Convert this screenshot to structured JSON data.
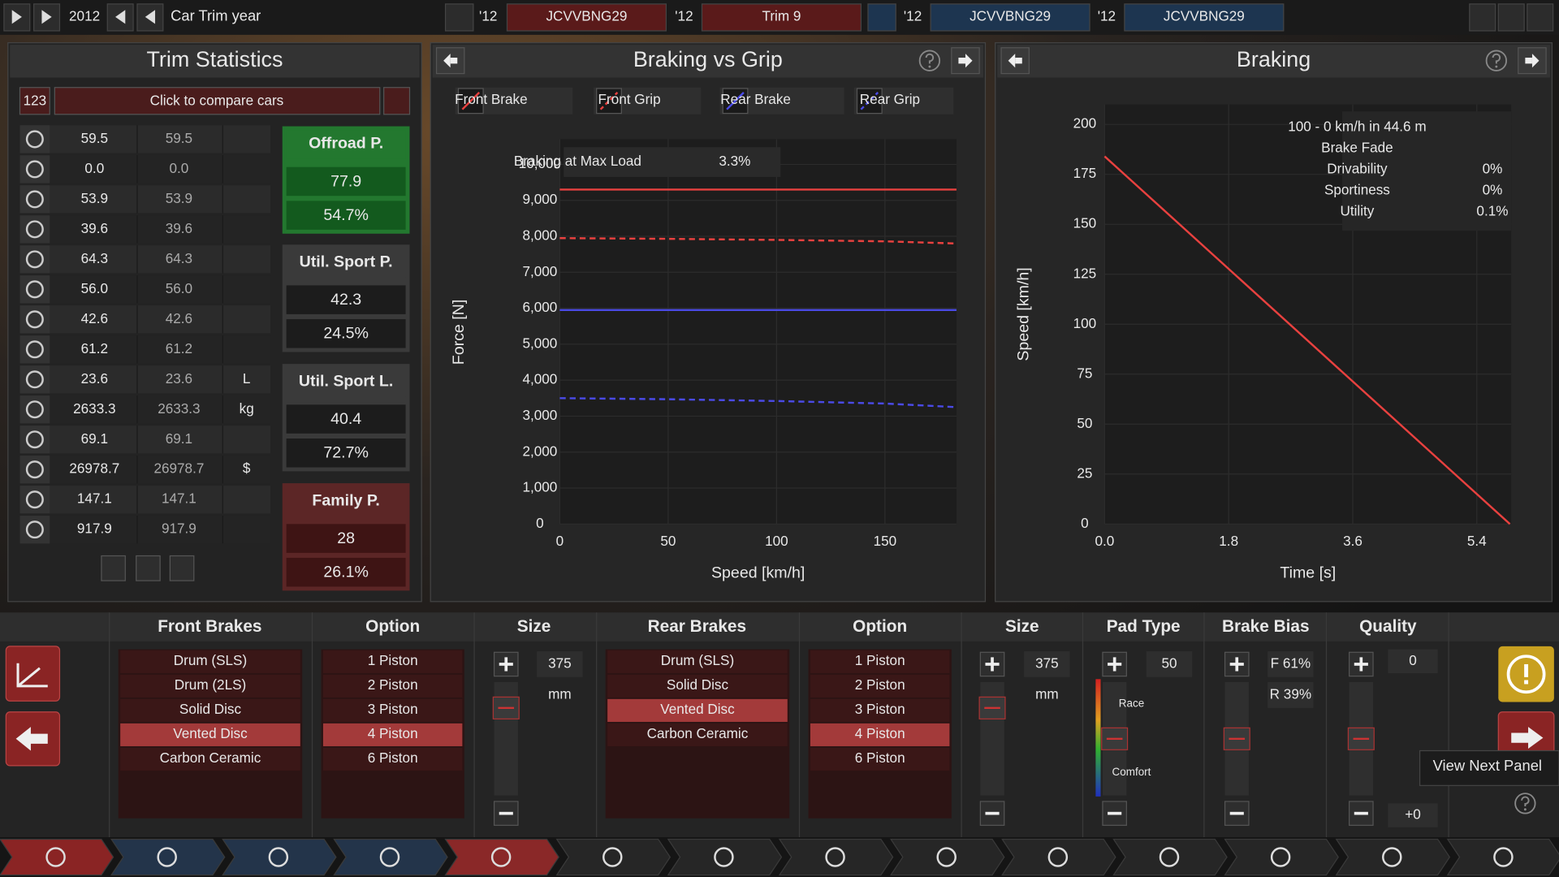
{
  "top_bar": {
    "year": "2012",
    "label": "Car Trim year",
    "slots": [
      {
        "year": "'12",
        "name": "JCVVBNG29",
        "color": "#5a1a1a"
      },
      {
        "year": "'12",
        "name": "Trim 9",
        "color": "#5a1a1a"
      },
      {
        "year": "'12",
        "name": "JCVVBNG29",
        "color": "#1d3550"
      },
      {
        "year": "'12",
        "name": "JCVVBNG29",
        "color": "#1d3550"
      }
    ]
  },
  "trim_statistics": {
    "title": "Trim Statistics",
    "count": "123",
    "compare_button": "Click to compare cars",
    "rows": [
      {
        "current": "59.5",
        "compare": "59.5"
      },
      {
        "current": "0.0",
        "compare": "0.0"
      },
      {
        "current": "53.9",
        "compare": "53.9"
      },
      {
        "current": "39.6",
        "compare": "39.6"
      },
      {
        "current": "64.3",
        "compare": "64.3"
      },
      {
        "current": "56.0",
        "compare": "56.0"
      },
      {
        "current": "42.6",
        "compare": "42.6"
      },
      {
        "current": "61.2",
        "compare": "61.2"
      },
      {
        "current": "23.6",
        "compare": "23.6",
        "unit": "L"
      },
      {
        "current": "2633.3",
        "compare": "2633.3",
        "unit": "kg"
      },
      {
        "current": "69.1",
        "compare": "69.1"
      },
      {
        "current": "26978.7",
        "compare": "26978.7",
        "unit": "$"
      },
      {
        "current": "147.1",
        "compare": "147.1"
      },
      {
        "current": "917.9",
        "compare": "917.9"
      }
    ],
    "scores": [
      {
        "name": "Offroad P.",
        "value": "77.9",
        "percent": "54.7%",
        "color": "#23782f",
        "inner": "#135a1e"
      },
      {
        "name": "Util. Sport P.",
        "value": "42.3",
        "percent": "24.5%",
        "color": "#3a3a3a",
        "inner": "#1c1c1c"
      },
      {
        "name": "Util. Sport L.",
        "value": "40.4",
        "percent": "72.7%",
        "color": "#3a3a3a",
        "inner": "#1c1c1c"
      },
      {
        "name": "Family P.",
        "value": "28",
        "percent": "26.1%",
        "color": "#5c2626",
        "inner": "#3e1414"
      }
    ]
  },
  "chart_data": [
    {
      "type": "line",
      "title": "Braking vs Grip",
      "x_label": "Speed [km/h]",
      "y_label": "Force [N]",
      "annotation": {
        "text": "Braking at Max Load",
        "value": "3.3%"
      },
      "x": [
        0,
        50,
        100,
        150,
        183
      ],
      "xlim": [
        0,
        183
      ],
      "xticks": [
        0,
        50,
        100,
        150
      ],
      "ylim": [
        0,
        10700
      ],
      "yticks": [
        0,
        {
          "value": 1000,
          "label": "1,000"
        },
        {
          "value": 2000,
          "label": "2,000"
        },
        {
          "value": 3000,
          "label": "3,000"
        },
        {
          "value": 4000,
          "label": "4,000"
        },
        {
          "value": 5000,
          "label": "5,000"
        },
        {
          "value": 6000,
          "label": "6,000"
        },
        {
          "value": 7000,
          "label": "7,000"
        },
        {
          "value": 8000,
          "label": "8,000"
        },
        {
          "value": 9000,
          "label": "9,000"
        },
        {
          "value": 10000,
          "label": "10,000"
        }
      ],
      "grid": true,
      "series": [
        {
          "name": "Front Brake",
          "color": "#e8413f",
          "dashed": false,
          "values": [
            9300,
            9300,
            9300,
            9300,
            9300
          ]
        },
        {
          "name": "Front Grip",
          "color": "#e8413f",
          "dashed": true,
          "values": [
            7950,
            7930,
            7900,
            7860,
            7800
          ]
        },
        {
          "name": "Rear Brake",
          "color": "#4a4ae6",
          "dashed": false,
          "values": [
            5950,
            5950,
            5950,
            5950,
            5950
          ]
        },
        {
          "name": "Rear Grip",
          "color": "#4a4ae6",
          "dashed": true,
          "values": [
            3500,
            3470,
            3420,
            3350,
            3250
          ]
        }
      ]
    },
    {
      "type": "line",
      "title": "Braking",
      "x_label": "Time [s]",
      "y_label": "Speed [km/h]",
      "info": [
        "100 - 0 km/h in 44.6 m",
        "Brake Fade"
      ],
      "stats": [
        {
          "label": "Drivability",
          "value": "0%"
        },
        {
          "label": "Sportiness",
          "value": "0%"
        },
        {
          "label": "Utility",
          "value": "0.1%"
        }
      ],
      "x": [
        0,
        5.88
      ],
      "xlim": [
        0,
        5.9
      ],
      "xticks": [
        {
          "value": 0,
          "label": "0.0"
        },
        1.8,
        3.6,
        5.4
      ],
      "ylim": [
        0,
        210
      ],
      "yticks": [
        0,
        25,
        50,
        75,
        100,
        125,
        150,
        175,
        200
      ],
      "grid": true,
      "color": "#e8413f",
      "values": [
        184,
        0
      ]
    }
  ],
  "brake_panel": {
    "headers": [
      "Front Brakes",
      "Option",
      "Size",
      "Rear Brakes",
      "Option",
      "Size",
      "Pad Type",
      "Brake Bias",
      "Quality"
    ],
    "front_types": [
      "Drum (SLS)",
      "Drum (2LS)",
      "Solid Disc",
      "Vented Disc",
      "Carbon Ceramic"
    ],
    "front_type_selected": 3,
    "front_options": [
      "1 Piston",
      "2 Piston",
      "3 Piston",
      "4 Piston",
      "6 Piston"
    ],
    "front_option_selected": 3,
    "front_size": {
      "value": "375",
      "unit": "mm"
    },
    "rear_types": [
      "Drum (SLS)",
      "Solid Disc",
      "Vented Disc",
      "Carbon Ceramic"
    ],
    "rear_type_selected": 2,
    "rear_options": [
      "1 Piston",
      "2 Piston",
      "3 Piston",
      "4 Piston",
      "6 Piston"
    ],
    "rear_option_selected": 3,
    "rear_size": {
      "value": "375",
      "unit": "mm"
    },
    "pad_type": {
      "value": "50",
      "high": "Race",
      "low": "Comfort"
    },
    "brake_bias": {
      "front": "F 61%",
      "rear": "R 39%"
    },
    "quality": {
      "value": "0",
      "offset": "+0"
    }
  },
  "tooltip": "View Next Panel"
}
